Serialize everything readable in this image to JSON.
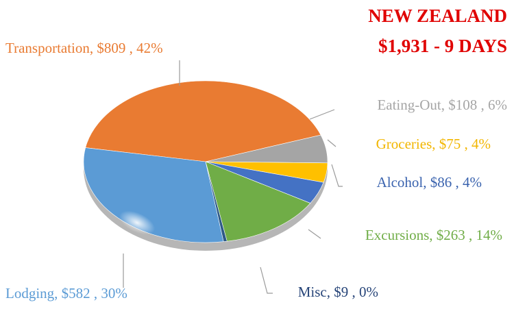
{
  "chart_data": {
    "type": "pie",
    "title": "NEW ZEALAND",
    "subtitle": "$1,931  -  9 DAYS",
    "labels": [
      "Transportation,  $809 , 42%",
      "Eating-Out,  $108 , 6%",
      "Groceries,  $75 , 4%",
      "Alcohol,  $86 , 4%",
      "Excursions,  $263 , 14%",
      "Misc,  $9 , 0%",
      "Lodging,  $582 , 30%"
    ],
    "values": [
      809,
      108,
      75,
      86,
      263,
      9,
      582
    ],
    "colors": [
      "#E97B32",
      "#A5A5A5",
      "#FFC000",
      "#4472C4",
      "#70AD47",
      "#2E5A87",
      "#5B9BD5"
    ],
    "label_colors": [
      "#E97B32",
      "#A5A5A5",
      "#F2B600",
      "#3A63AE",
      "#70AD47",
      "#264478",
      "#5B9BD5"
    ]
  }
}
